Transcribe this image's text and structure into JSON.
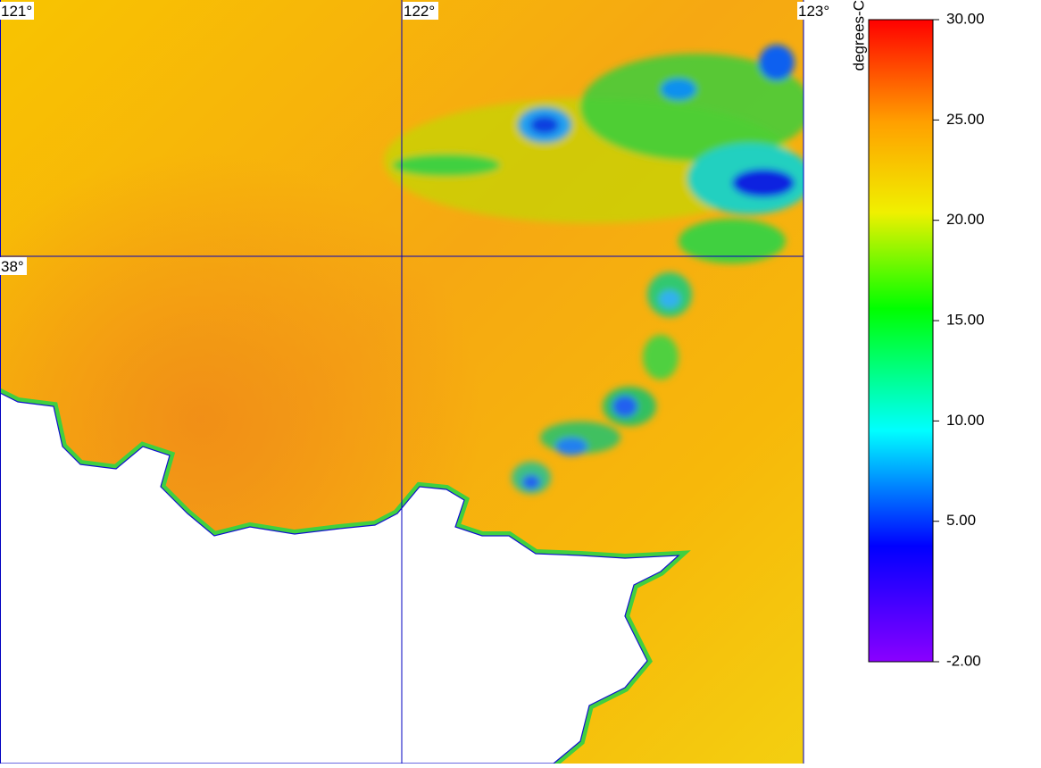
{
  "map": {
    "grid_labels": {
      "lon": [
        "121°",
        "122°",
        "123°"
      ],
      "lat": [
        "38°"
      ]
    },
    "colorbar": {
      "label": "degrees-C",
      "range": [
        -2,
        30
      ],
      "ticks": [
        {
          "value": 30,
          "label": "30.00"
        },
        {
          "value": 25,
          "label": "25.00"
        },
        {
          "value": 20,
          "label": "20.00"
        },
        {
          "value": 15,
          "label": "15.00"
        },
        {
          "value": 10,
          "label": "10.00"
        },
        {
          "value": 5,
          "label": "5.00"
        },
        {
          "value": -2,
          "label": "-2.00"
        }
      ]
    }
  }
}
